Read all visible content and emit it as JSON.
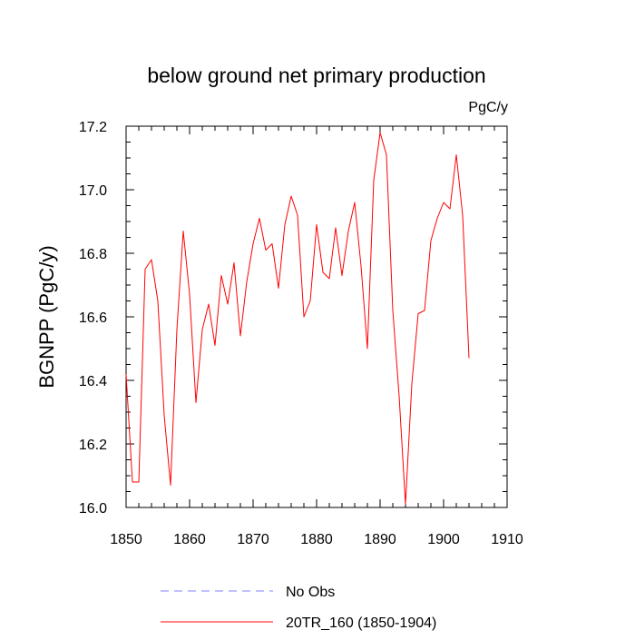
{
  "chart_data": {
    "type": "line",
    "title": "below ground net primary production",
    "units_label": "PgC/y",
    "xlabel": "",
    "ylabel": "BGNPP  (PgC/y)",
    "xlim": [
      1850,
      1910
    ],
    "ylim": [
      16.0,
      17.2
    ],
    "x_ticks": [
      1850,
      1860,
      1870,
      1880,
      1890,
      1900,
      1910
    ],
    "x_tick_labels": [
      "1850",
      "1860",
      "1870",
      "1880",
      "1890",
      "1900",
      "1910"
    ],
    "y_ticks": [
      16.0,
      16.2,
      16.4,
      16.6,
      16.8,
      17.0,
      17.2
    ],
    "y_tick_labels": [
      "16.0",
      "16.2",
      "16.4",
      "16.6",
      "16.8",
      "17.0",
      "17.2"
    ],
    "grid": false,
    "legend_position": "bottom-center",
    "colors": {
      "series": "#ff0000",
      "obs": "#8080ff",
      "axis": "#000000"
    },
    "series": [
      {
        "name": "20TR_160 (1850-1904)",
        "style": "solid",
        "color": "#ff0000",
        "x": [
          1850,
          1851,
          1852,
          1853,
          1854,
          1855,
          1856,
          1857,
          1858,
          1859,
          1860,
          1861,
          1862,
          1863,
          1864,
          1865,
          1866,
          1867,
          1868,
          1869,
          1870,
          1871,
          1872,
          1873,
          1874,
          1875,
          1876,
          1877,
          1878,
          1879,
          1880,
          1881,
          1882,
          1883,
          1884,
          1885,
          1886,
          1887,
          1888,
          1889,
          1890,
          1891,
          1892,
          1893,
          1894,
          1895,
          1896,
          1897,
          1898,
          1899,
          1900,
          1901,
          1902,
          1903,
          1904
        ],
        "values": [
          16.42,
          16.08,
          16.08,
          16.75,
          16.78,
          16.65,
          16.29,
          16.07,
          16.56,
          16.87,
          16.67,
          16.33,
          16.56,
          16.64,
          16.51,
          16.73,
          16.64,
          16.77,
          16.54,
          16.71,
          16.83,
          16.91,
          16.81,
          16.83,
          16.69,
          16.89,
          16.98,
          16.92,
          16.6,
          16.65,
          16.89,
          16.74,
          16.72,
          16.88,
          16.73,
          16.87,
          16.96,
          16.76,
          16.5,
          17.03,
          17.18,
          17.11,
          16.62,
          16.35,
          16.01,
          16.39,
          16.61,
          16.62,
          16.84,
          16.91,
          16.96,
          16.94,
          17.11,
          16.92,
          16.47
        ]
      },
      {
        "name": "No Obs",
        "style": "dashed",
        "color": "#8080ff",
        "x": [],
        "values": []
      }
    ],
    "legend": [
      {
        "label": "No Obs",
        "style": "dashed",
        "color": "#8080ff"
      },
      {
        "label": "20TR_160 (1850-1904)",
        "style": "solid",
        "color": "#ff0000"
      }
    ]
  }
}
